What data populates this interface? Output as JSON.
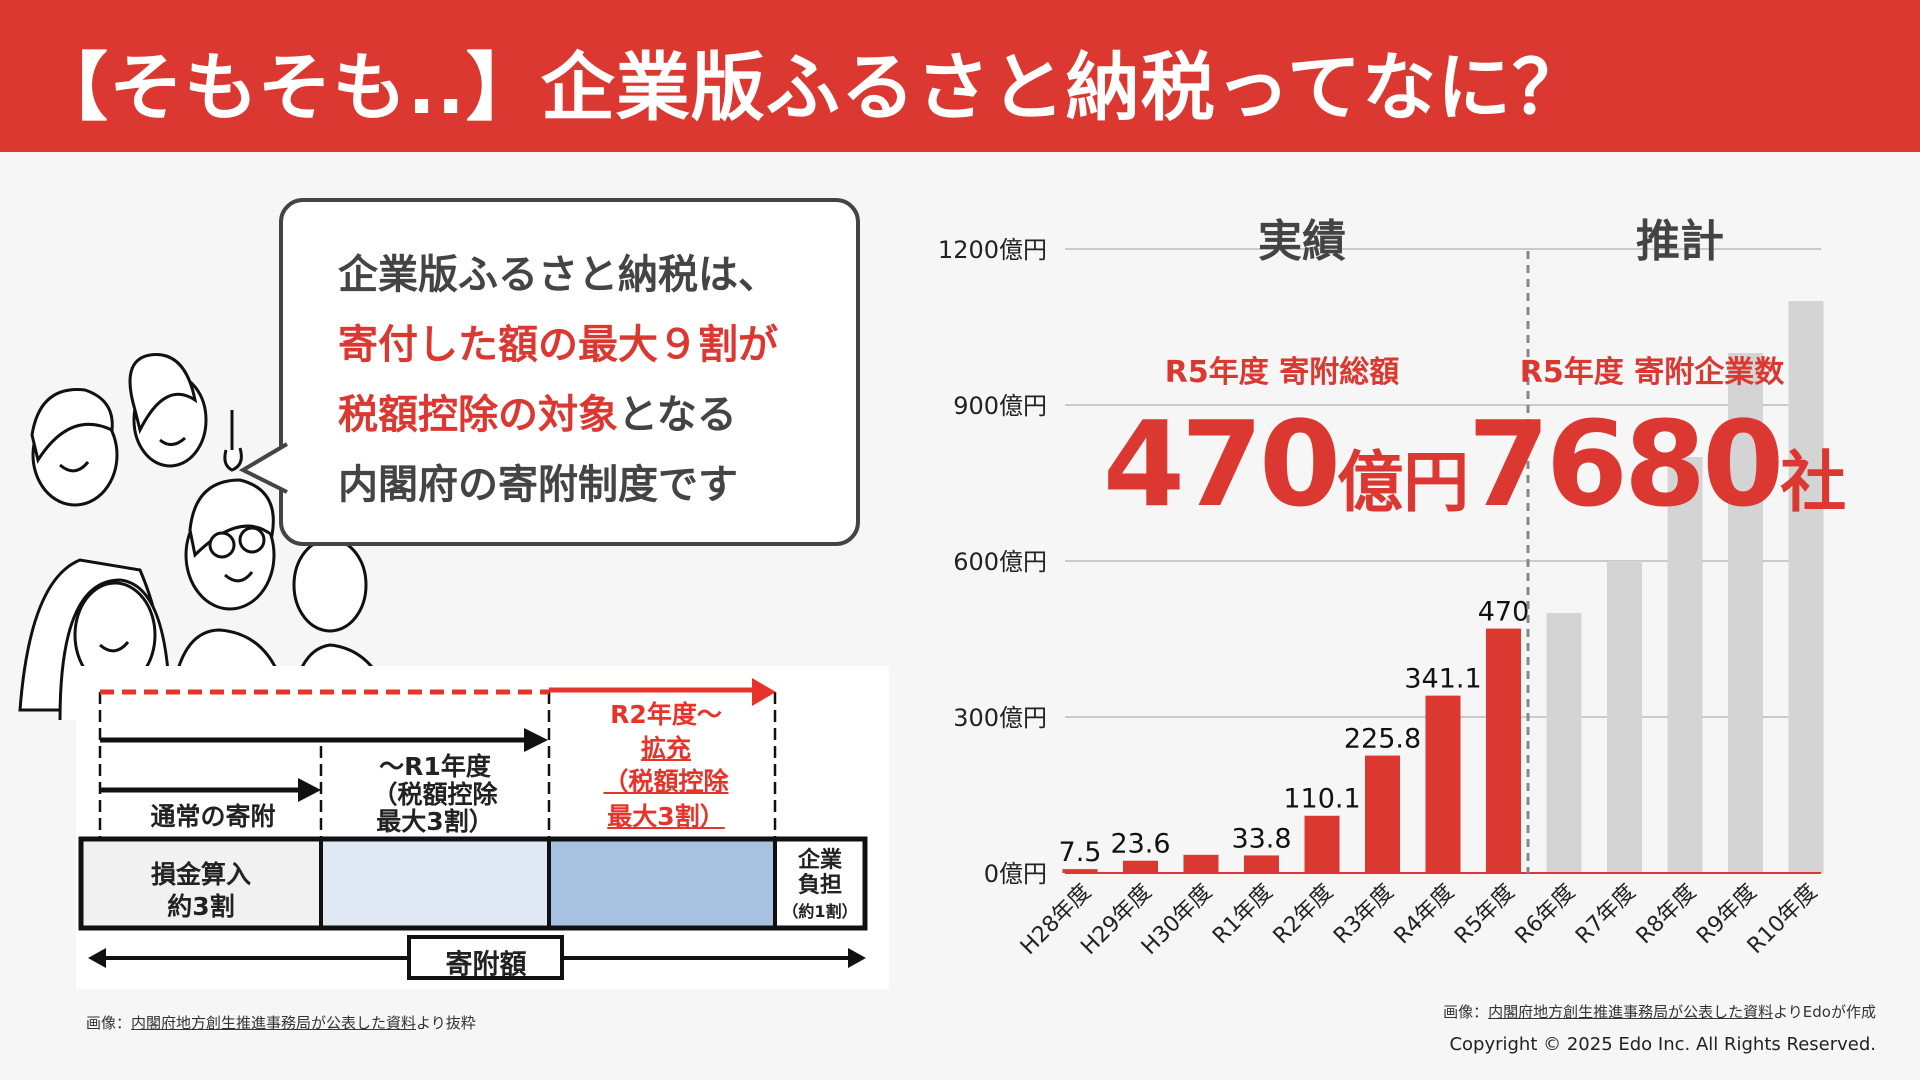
{
  "header": {
    "title": "【そもそも..】企業版ふるさと納税ってなに？"
  },
  "bubble": {
    "line1": "企業版ふるさと納税は、",
    "line2": "寄付した額の最大９割が",
    "line3_red": "税額控除の対象",
    "line3_rest": "となる",
    "line4": "内閣府の寄附制度です"
  },
  "diagram": {
    "normal": "通常の寄附",
    "r1": [
      "〜R1年度",
      "（税額控除",
      "最大3割）"
    ],
    "r2": [
      "R2年度〜",
      "拡充",
      "（税額控除",
      "最大3割）"
    ],
    "cell1": [
      "損金算入",
      "約3割"
    ],
    "cell4": [
      "企業",
      "負担",
      "（約1割）"
    ],
    "total": "寄附額"
  },
  "caption_left": {
    "prefix": "画像：",
    "link": "内閣府地方創生推進事務局が公表した資料",
    "suffix": "より抜粋"
  },
  "chart_data": {
    "type": "bar",
    "title": "",
    "section_labels": {
      "actual": "実績",
      "forecast": "推計"
    },
    "categories": [
      "H28年度",
      "H29年度",
      "H30年度",
      "R1年度",
      "R2年度",
      "R3年度",
      "R4年度",
      "R5年度",
      "R6年度",
      "R7年度",
      "R8年度",
      "R9年度",
      "R10年度"
    ],
    "values": [
      7.5,
      23.6,
      35,
      33.8,
      110.1,
      225.8,
      341.1,
      470,
      500,
      600,
      800,
      1000,
      1100
    ],
    "data_labels": [
      "7.5",
      "23.6",
      "",
      "33.8",
      "110.1",
      "225.8",
      "341.1",
      "470",
      "",
      "",
      "",
      "",
      ""
    ],
    "series_type": [
      "actual",
      "actual",
      "actual",
      "actual",
      "actual",
      "actual",
      "actual",
      "actual",
      "forecast",
      "forecast",
      "forecast",
      "forecast",
      "forecast"
    ],
    "yticks": [
      0,
      300,
      600,
      900,
      1200
    ],
    "ytick_labels": [
      "0億円",
      "300億円",
      "600億円",
      "900億円",
      "1200億円"
    ],
    "ylim": [
      0,
      1200
    ],
    "colors": {
      "actual": "#dc3832",
      "forecast": "#d4d4d4"
    }
  },
  "highlights": {
    "total_label": "R5年度 寄附総額",
    "total_value": "470",
    "total_unit": "億円",
    "companies_label": "R5年度 寄附企業数",
    "companies_value": "7680",
    "companies_unit": "社"
  },
  "caption_right": {
    "prefix": "画像：",
    "link": "内閣府地方創生推進事務局が公表した資料",
    "suffix": "よりEdoが作成"
  },
  "copyright": "Copyright © 2025 Edo Inc. All Rights Reserved."
}
